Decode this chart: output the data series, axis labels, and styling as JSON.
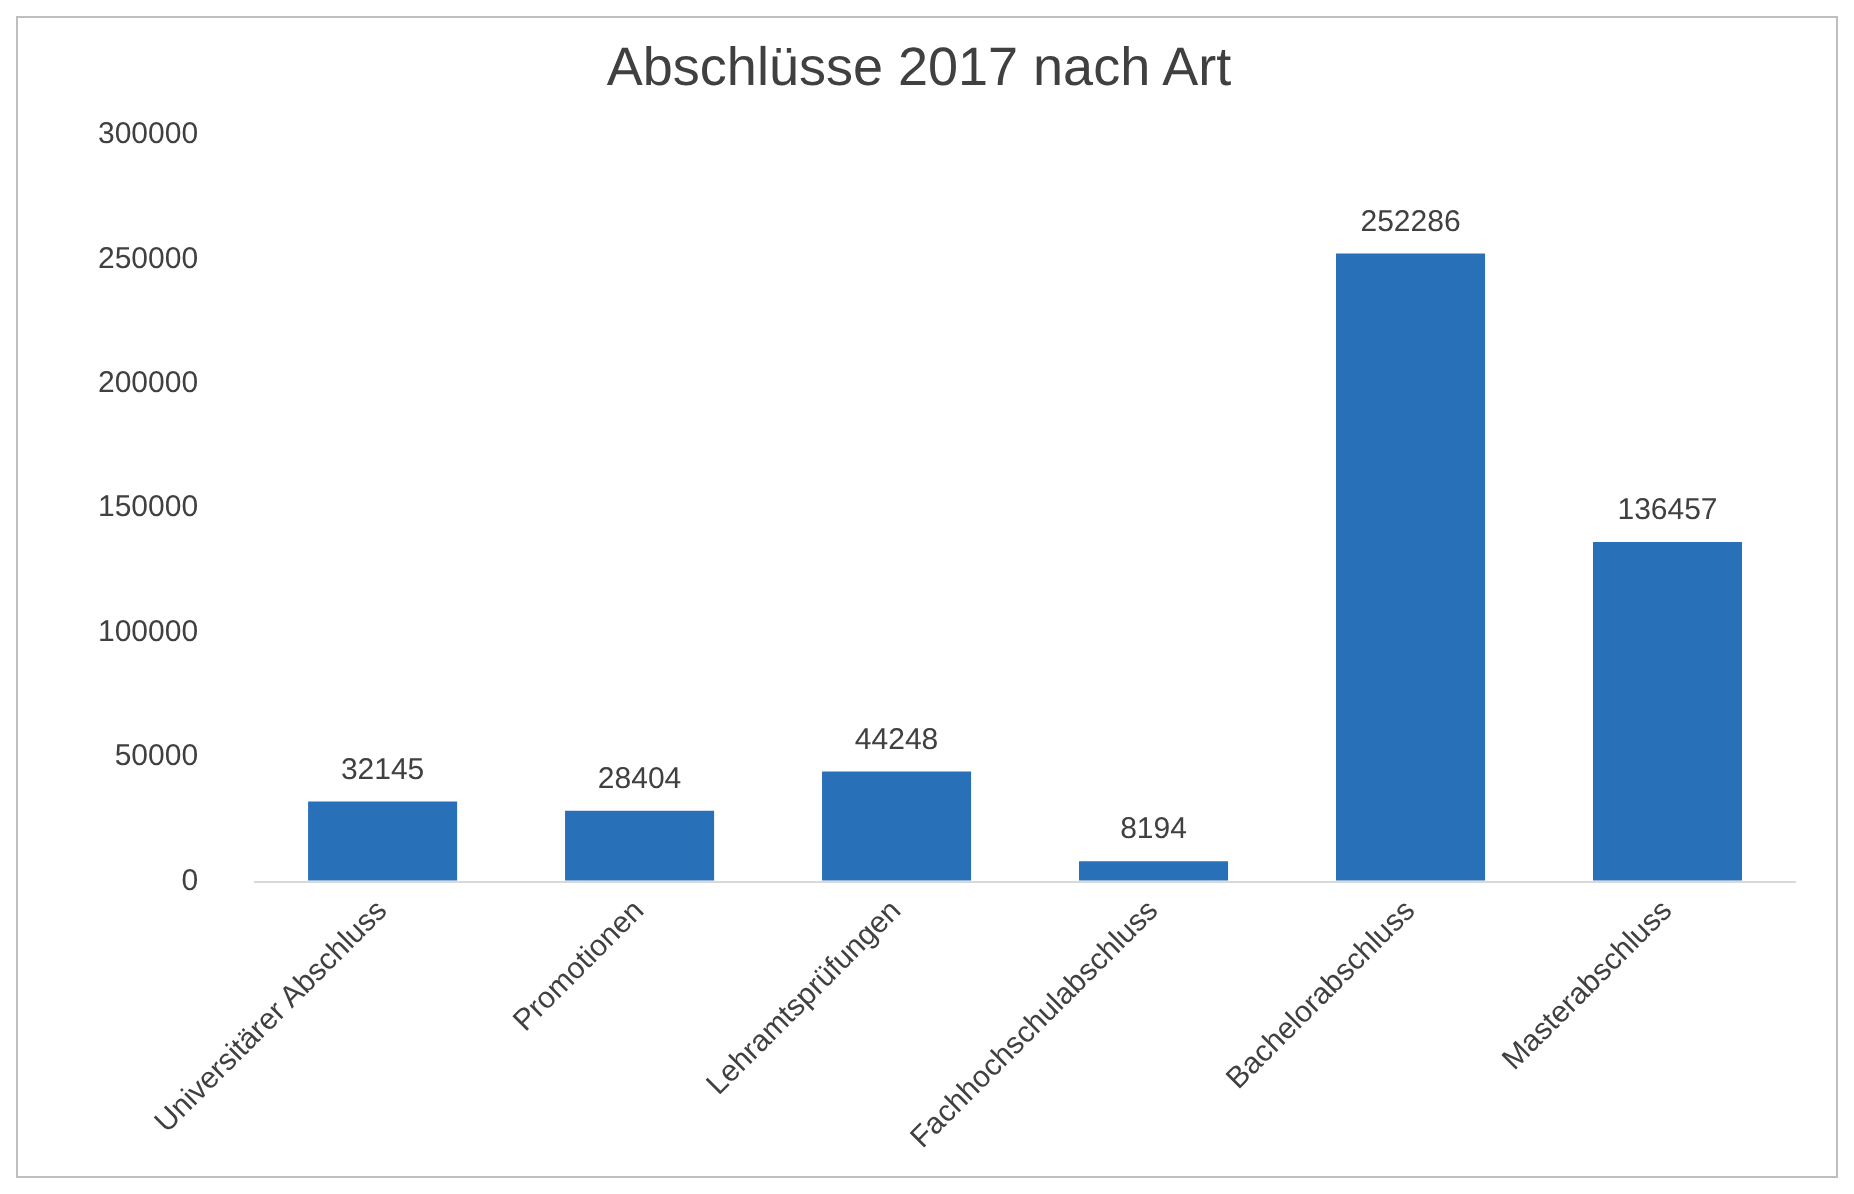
{
  "chart_data": {
    "type": "bar",
    "title": "Abschlüsse 2017 nach Art",
    "categories": [
      "Universitärer Abschluss",
      "Promotionen",
      "Lehramtsprüfungen",
      "Fachhochschulabschluss",
      "Bachelorabschluss",
      "Masterabschluss"
    ],
    "values": [
      32145,
      28404,
      44248,
      8194,
      252286,
      136457
    ],
    "color": "#2870b8",
    "ylim": [
      0,
      300000
    ],
    "yticks": [
      0,
      50000,
      100000,
      150000,
      200000,
      250000,
      300000
    ],
    "grid": false,
    "data_labels": true
  }
}
